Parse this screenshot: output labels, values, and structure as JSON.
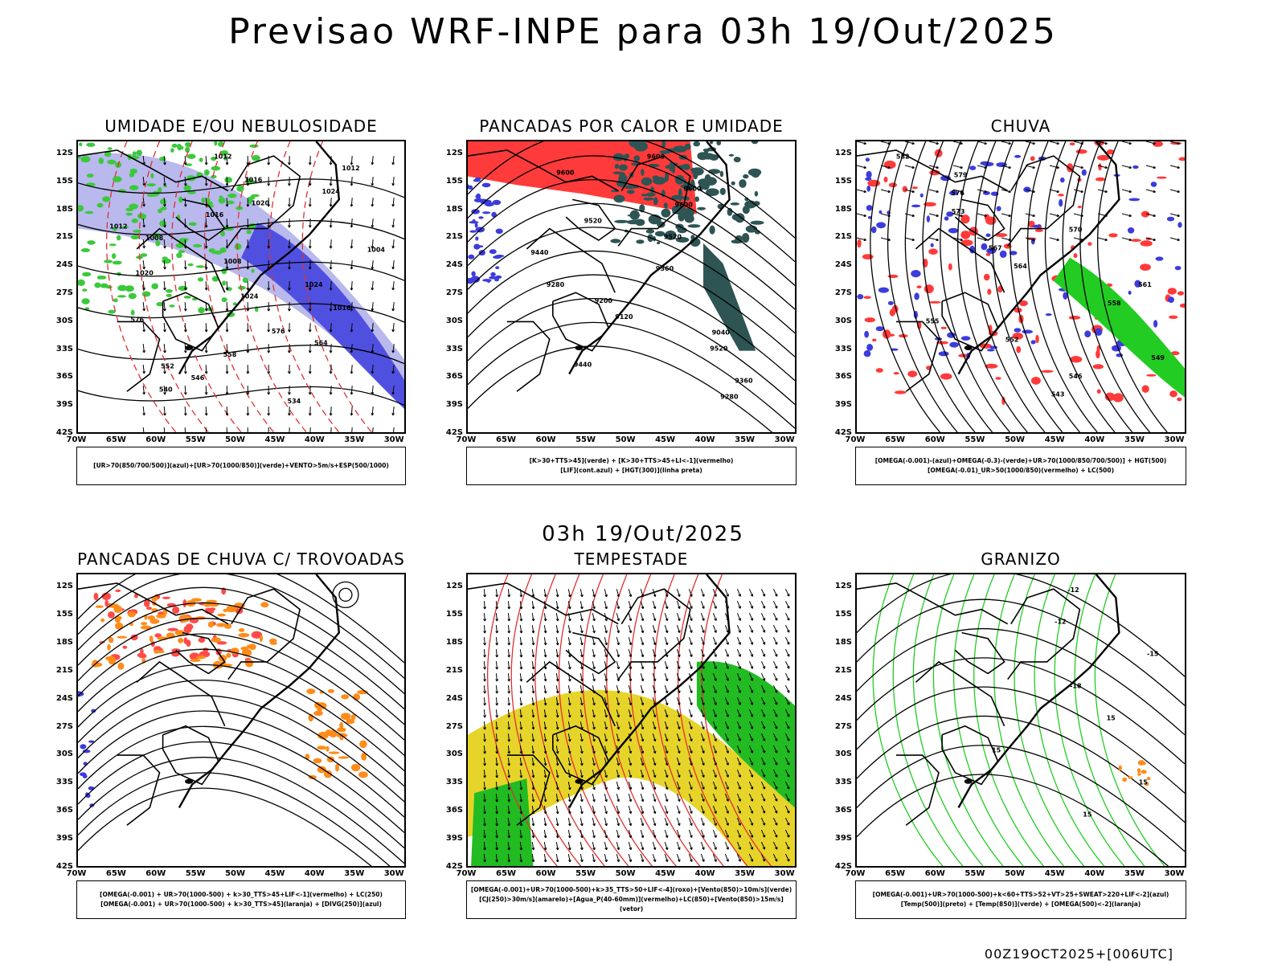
{
  "title": "Previsao WRF-INPE  para 03h 19/Out/2025",
  "mid_title": "03h 19/Out/2025",
  "footer": "00Z19OCT2025+[006UTC]",
  "lat_labels": [
    "12S",
    "15S",
    "18S",
    "21S",
    "24S",
    "27S",
    "30S",
    "33S",
    "36S",
    "39S",
    "42S"
  ],
  "lon_labels": [
    "70W",
    "65W",
    "60W",
    "55W",
    "50W",
    "45W",
    "40W",
    "35W",
    "30W"
  ],
  "panels": [
    {
      "title": "UMIDADE E/OU NEBULOSIDADE",
      "legend": [
        "[UR>70(850/700/500)](azul)+[UR>70(1000/850)](verde)+VENTO>5m/s+ESP(500/1000)"
      ],
      "contour_labels": [
        "1012",
        "1012",
        "1016",
        "1024",
        "1020",
        "1016",
        "1012",
        "1008",
        "1004",
        "1008",
        "1020",
        "1024",
        "1024",
        "1016",
        "576",
        "576",
        "564",
        "558",
        "552",
        "546",
        "540",
        "534"
      ]
    },
    {
      "title": "PANCADAS POR CALOR E UMIDADE",
      "legend": [
        "[K>30+TTS>45](verde) + [K>30+TTS>45+LI<-1](vermelho)",
        "[LIF](cont.azul) + [HGT(300)](linha preta)"
      ],
      "contour_labels": [
        "9600",
        "9600",
        "9600",
        "9600",
        "9520",
        "9520",
        "9440",
        "9360",
        "9280",
        "9200",
        "9120",
        "9040",
        "9520",
        "9440",
        "9360",
        "9280"
      ]
    },
    {
      "title": "CHUVA",
      "legend": [
        "[OMEGA(-0.001)-(azul)+OMEGA(-0.3)-(verde)+UR>70(1000/850/700/500)] + HGT(500)",
        "[OMEGA(-0.01)_UR>50(1000/850)(vermelho) + LC(500)"
      ],
      "contour_labels": [
        "582",
        "579",
        "576",
        "573",
        "570",
        "567",
        "564",
        "561",
        "558",
        "555",
        "552",
        "549",
        "546",
        "543"
      ]
    },
    {
      "title": "PANCADAS DE CHUVA C/ TROVOADAS",
      "legend": [
        "[OMEGA(-0.001) + UR>70(1000-500) + k>30_TTS>45+LIF<-1](vermelho) + LC(250)",
        "[OMEGA(-0.001) + UR>70(1000-500) + k>30_TTS>45](laranja) + [DIVG(250)](azul)"
      ],
      "contour_labels": []
    },
    {
      "title": "TEMPESTADE",
      "legend": [
        "[OMEGA(-0.001)+UR>70(1000-500)+k>35_TTS>50+LIF<-4](roxo)+[Vento(850)>10m/s](verde)",
        "[CJ(250)>30m/s](amarelo)+[Agua_P(40-60mm)](vermelho)+LC(850)+[Vento(850)>15m/s](vetor)"
      ],
      "contour_labels": []
    },
    {
      "title": "GRANIZO",
      "legend": [
        "[OMEGA(-0.001)+UR>70(1000-500)+k<60+TTS>52+VT>25+SWEAT>220+LIF<-2](azul)",
        "[Temp(500)](preto) + [Temp(850)](verde) + [OMEGA(500)<-2](laranja)"
      ],
      "contour_labels": [
        "-12",
        "-12",
        "-15",
        "-18",
        "15",
        "15",
        "15",
        "15"
      ]
    }
  ]
}
